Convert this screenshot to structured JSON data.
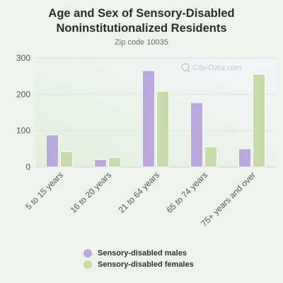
{
  "header": {
    "title_line1": "Age and Sex of Sensory-Disabled",
    "title_line2": "Noninstitutionalized Residents",
    "subtitle": "Zip code 10035"
  },
  "watermark": "City-Data.com",
  "colors": {
    "males": "#b9a8dc",
    "females": "#c5dba8",
    "gridline": "#dde6dd",
    "axis_text": "#555555"
  },
  "chart_data": {
    "type": "bar",
    "title": "Age and Sex of Sensory-Disabled Noninstitutionalized Residents",
    "subtitle": "Zip code 10035",
    "categories": [
      "5 to 15 years",
      "16 to 20 years",
      "21 to 64 years",
      "65 to 74 years",
      "75+ years and over"
    ],
    "series": [
      {
        "name": "Sensory-disabled males",
        "values": [
          88,
          20,
          265,
          177,
          50
        ]
      },
      {
        "name": "Sensory-disabled females",
        "values": [
          42,
          26,
          208,
          55,
          255
        ]
      }
    ],
    "yticks": [
      0,
      100,
      200,
      300
    ],
    "ylim": [
      0,
      300
    ],
    "grid": true,
    "legend_position": "bottom"
  }
}
